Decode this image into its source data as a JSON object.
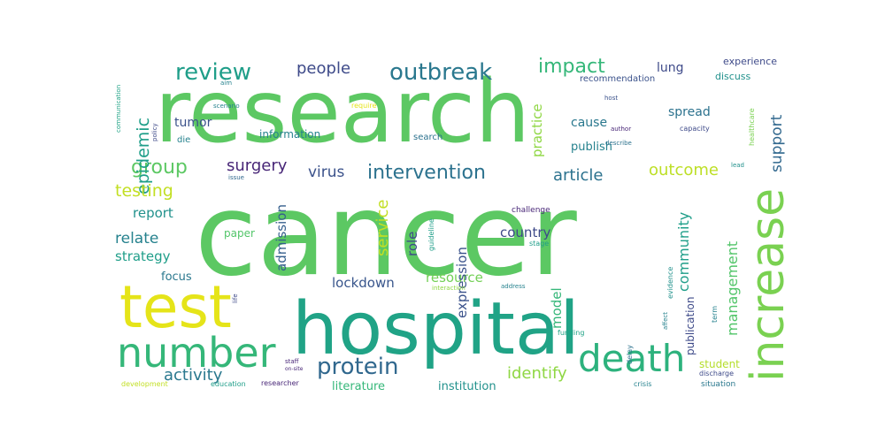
{
  "words": [
    {
      "text": "research",
      "color": "#5cc863"
    },
    {
      "text": "cancer",
      "color": "#5cc863"
    },
    {
      "text": "hospital",
      "color": "#20a386"
    },
    {
      "text": "test",
      "color": "#e5e419"
    },
    {
      "text": "increase",
      "color": "#7ad151"
    },
    {
      "text": "number",
      "color": "#35b779"
    },
    {
      "text": "death",
      "color": "#2db27d"
    },
    {
      "text": "protein",
      "color": "#31688e"
    },
    {
      "text": "review",
      "color": "#1f9e89"
    },
    {
      "text": "outbreak",
      "color": "#2a788e"
    },
    {
      "text": "impact",
      "color": "#35b779"
    },
    {
      "text": "people",
      "color": "#3e4a89"
    },
    {
      "text": "group",
      "color": "#5cc863"
    },
    {
      "text": "intervention",
      "color": "#2c728e"
    },
    {
      "text": "epidemic",
      "color": "#1f9e89"
    },
    {
      "text": "testing",
      "color": "#c2df23"
    },
    {
      "text": "surgery",
      "color": "#482677"
    },
    {
      "text": "article",
      "color": "#2c728e"
    },
    {
      "text": "outcome",
      "color": "#bddf26"
    },
    {
      "text": "identify",
      "color": "#8fd744"
    },
    {
      "text": "activity",
      "color": "#2a788e"
    },
    {
      "text": "service",
      "color": "#c2df23"
    },
    {
      "text": "support",
      "color": "#31688e"
    },
    {
      "text": "virus",
      "color": "#3b528b"
    },
    {
      "text": "relate",
      "color": "#26828e"
    },
    {
      "text": "management",
      "color": "#52c569"
    },
    {
      "text": "community",
      "color": "#1f9e89"
    },
    {
      "text": "lockdown",
      "color": "#39568c"
    },
    {
      "text": "resource",
      "color": "#73d056"
    },
    {
      "text": "strategy",
      "color": "#1f9e89"
    },
    {
      "text": "report",
      "color": "#21918c"
    },
    {
      "text": "country",
      "color": "#3e4a89"
    },
    {
      "text": "model",
      "color": "#35b779"
    },
    {
      "text": "role",
      "color": "#3e4a89"
    },
    {
      "text": "admission",
      "color": "#355f8d"
    },
    {
      "text": "expression",
      "color": "#3b528b"
    },
    {
      "text": "practice",
      "color": "#8fd744"
    },
    {
      "text": "cause",
      "color": "#2a788e"
    },
    {
      "text": "publish",
      "color": "#26828e"
    },
    {
      "text": "spread",
      "color": "#2c728e"
    },
    {
      "text": "lung",
      "color": "#3e4a89"
    },
    {
      "text": "tumor",
      "color": "#3b528b"
    },
    {
      "text": "literature",
      "color": "#35b779"
    },
    {
      "text": "institution",
      "color": "#21918c"
    },
    {
      "text": "student",
      "color": "#b5de2b"
    },
    {
      "text": "focus",
      "color": "#2a788e"
    },
    {
      "text": "paper",
      "color": "#52c569"
    },
    {
      "text": "publication",
      "color": "#3e4a89"
    },
    {
      "text": "information",
      "color": "#26828e"
    },
    {
      "text": "experience",
      "color": "#3e4a89"
    },
    {
      "text": "discuss",
      "color": "#21918c"
    },
    {
      "text": "recommendation",
      "color": "#3b528b"
    },
    {
      "text": "die",
      "color": "#26828e"
    },
    {
      "text": "search",
      "color": "#2c728e"
    },
    {
      "text": "challenge",
      "color": "#482677"
    },
    {
      "text": "stage",
      "color": "#1f9e89"
    },
    {
      "text": "guideline",
      "color": "#1f9e89"
    },
    {
      "text": "interaction",
      "color": "#8fd744"
    },
    {
      "text": "address",
      "color": "#26828e"
    },
    {
      "text": "evidence",
      "color": "#21918c"
    },
    {
      "text": "funding",
      "color": "#20a386"
    },
    {
      "text": "delay",
      "color": "#2c728e"
    },
    {
      "text": "affect",
      "color": "#26828e"
    },
    {
      "text": "term",
      "color": "#26828e"
    },
    {
      "text": "researcher",
      "color": "#482677"
    },
    {
      "text": "education",
      "color": "#1f9e89"
    },
    {
      "text": "development",
      "color": "#c2df23"
    },
    {
      "text": "crisis",
      "color": "#26828e"
    },
    {
      "text": "situation",
      "color": "#2a788e"
    },
    {
      "text": "discharge",
      "color": "#3e4a89"
    },
    {
      "text": "issue",
      "color": "#31688e"
    },
    {
      "text": "require",
      "color": "#e5e419"
    },
    {
      "text": "scenario",
      "color": "#26828e"
    },
    {
      "text": "aim",
      "color": "#26828e"
    },
    {
      "text": "policy",
      "color": "#3e4a89"
    },
    {
      "text": "host",
      "color": "#3b528b"
    },
    {
      "text": "author",
      "color": "#482677"
    },
    {
      "text": "describe",
      "color": "#2c728e"
    },
    {
      "text": "capacity",
      "color": "#3e4a89"
    },
    {
      "text": "healthcare",
      "color": "#7ad151"
    },
    {
      "text": "lead",
      "color": "#21918c"
    },
    {
      "text": "communication",
      "color": "#20a386"
    },
    {
      "text": "life",
      "color": "#3e4a89"
    },
    {
      "text": "staff",
      "color": "#482677"
    },
    {
      "text": "on-site",
      "color": "#482677"
    }
  ]
}
